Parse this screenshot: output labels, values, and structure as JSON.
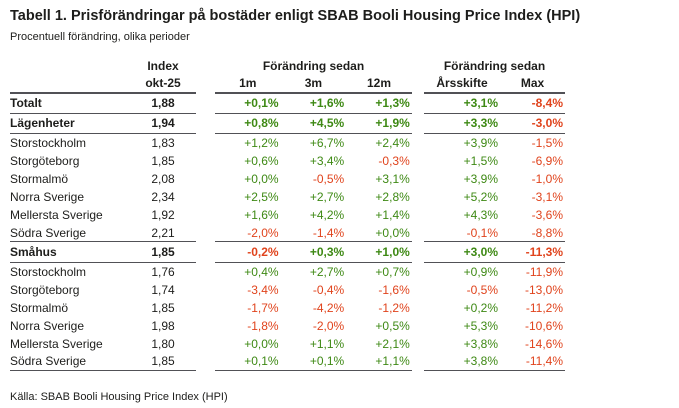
{
  "title": "Tabell 1. Prisförändringar på bostäder enligt SBAB Booli Housing Price Index (HPI)",
  "subtitle": "Procentuell förändring, olika perioder",
  "source": "Källa: SBAB Booli Housing Price Index (HPI)",
  "colors": {
    "positive": "#3e8914",
    "negative": "#e0431c",
    "rule": "#515156"
  },
  "table": {
    "index_header": {
      "line1": "Index",
      "line2": "okt-25"
    },
    "group_b": {
      "title": "Förändring sedan",
      "cols": [
        "1m",
        "3m",
        "12m"
      ]
    },
    "group_c": {
      "title": "Förändring sedan",
      "cols": [
        "Årsskifte",
        "Max"
      ]
    },
    "rows": [
      {
        "label": "Totalt",
        "index": "1,88",
        "values": [
          "+0,1%",
          "+1,6%",
          "+1,3%",
          "+3,1%",
          "-8,4%"
        ],
        "bold": true,
        "border_top": true,
        "border_bottom": true
      },
      {
        "label": "Lägenheter",
        "index": "1,94",
        "values": [
          "+0,8%",
          "+4,5%",
          "+1,9%",
          "+3,3%",
          "-3,0%"
        ],
        "bold": true,
        "border_top": false,
        "border_bottom": true
      },
      {
        "label": "Storstockholm",
        "index": "1,83",
        "values": [
          "+1,2%",
          "+6,7%",
          "+2,4%",
          "+3,9%",
          "-1,5%"
        ],
        "bold": false,
        "border_top": false,
        "border_bottom": false
      },
      {
        "label": "Storgöteborg",
        "index": "1,85",
        "values": [
          "+0,6%",
          "+3,4%",
          "-0,3%",
          "+1,5%",
          "-6,9%"
        ],
        "bold": false,
        "border_top": false,
        "border_bottom": false
      },
      {
        "label": "Stormalmö",
        "index": "2,08",
        "values": [
          "+0,0%",
          "-0,5%",
          "+3,1%",
          "+3,9%",
          "-1,0%"
        ],
        "bold": false,
        "border_top": false,
        "border_bottom": false
      },
      {
        "label": "Norra Sverige",
        "index": "2,34",
        "values": [
          "+2,5%",
          "+2,7%",
          "+2,8%",
          "+5,2%",
          "-3,1%"
        ],
        "bold": false,
        "border_top": false,
        "border_bottom": false
      },
      {
        "label": "Mellersta Sverige",
        "index": "1,92",
        "values": [
          "+1,6%",
          "+4,2%",
          "+1,4%",
          "+4,3%",
          "-3,6%"
        ],
        "bold": false,
        "border_top": false,
        "border_bottom": false
      },
      {
        "label": "Södra Sverige",
        "index": "2,21",
        "values": [
          "-2,0%",
          "-1,4%",
          "+0,0%",
          "-0,1%",
          "-8,8%"
        ],
        "bold": false,
        "border_top": false,
        "border_bottom": true
      },
      {
        "label": "Småhus",
        "index": "1,85",
        "values": [
          "-0,2%",
          "+0,3%",
          "+1,0%",
          "+3,0%",
          "-11,3%"
        ],
        "bold": true,
        "border_top": false,
        "border_bottom": true
      },
      {
        "label": "Storstockholm",
        "index": "1,76",
        "values": [
          "+0,4%",
          "+2,7%",
          "+0,7%",
          "+0,9%",
          "-11,9%"
        ],
        "bold": false,
        "border_top": false,
        "border_bottom": false
      },
      {
        "label": "Storgöteborg",
        "index": "1,74",
        "values": [
          "-3,4%",
          "-0,4%",
          "-1,6%",
          "-0,5%",
          "-13,0%"
        ],
        "bold": false,
        "border_top": false,
        "border_bottom": false
      },
      {
        "label": "Stormalmö",
        "index": "1,85",
        "values": [
          "-1,7%",
          "-4,2%",
          "-1,2%",
          "+0,2%",
          "-11,2%"
        ],
        "bold": false,
        "border_top": false,
        "border_bottom": false
      },
      {
        "label": "Norra Sverige",
        "index": "1,98",
        "values": [
          "-1,8%",
          "-2,0%",
          "+0,5%",
          "+5,3%",
          "-10,6%"
        ],
        "bold": false,
        "border_top": false,
        "border_bottom": false
      },
      {
        "label": "Mellersta Sverige",
        "index": "1,80",
        "values": [
          "+0,0%",
          "+1,1%",
          "+2,1%",
          "+3,8%",
          "-14,6%"
        ],
        "bold": false,
        "border_top": false,
        "border_bottom": false
      },
      {
        "label": "Södra Sverige",
        "index": "1,85",
        "values": [
          "+0,1%",
          "+0,1%",
          "+1,1%",
          "+3,8%",
          "-11,4%"
        ],
        "bold": false,
        "border_top": false,
        "border_bottom": true
      }
    ]
  }
}
